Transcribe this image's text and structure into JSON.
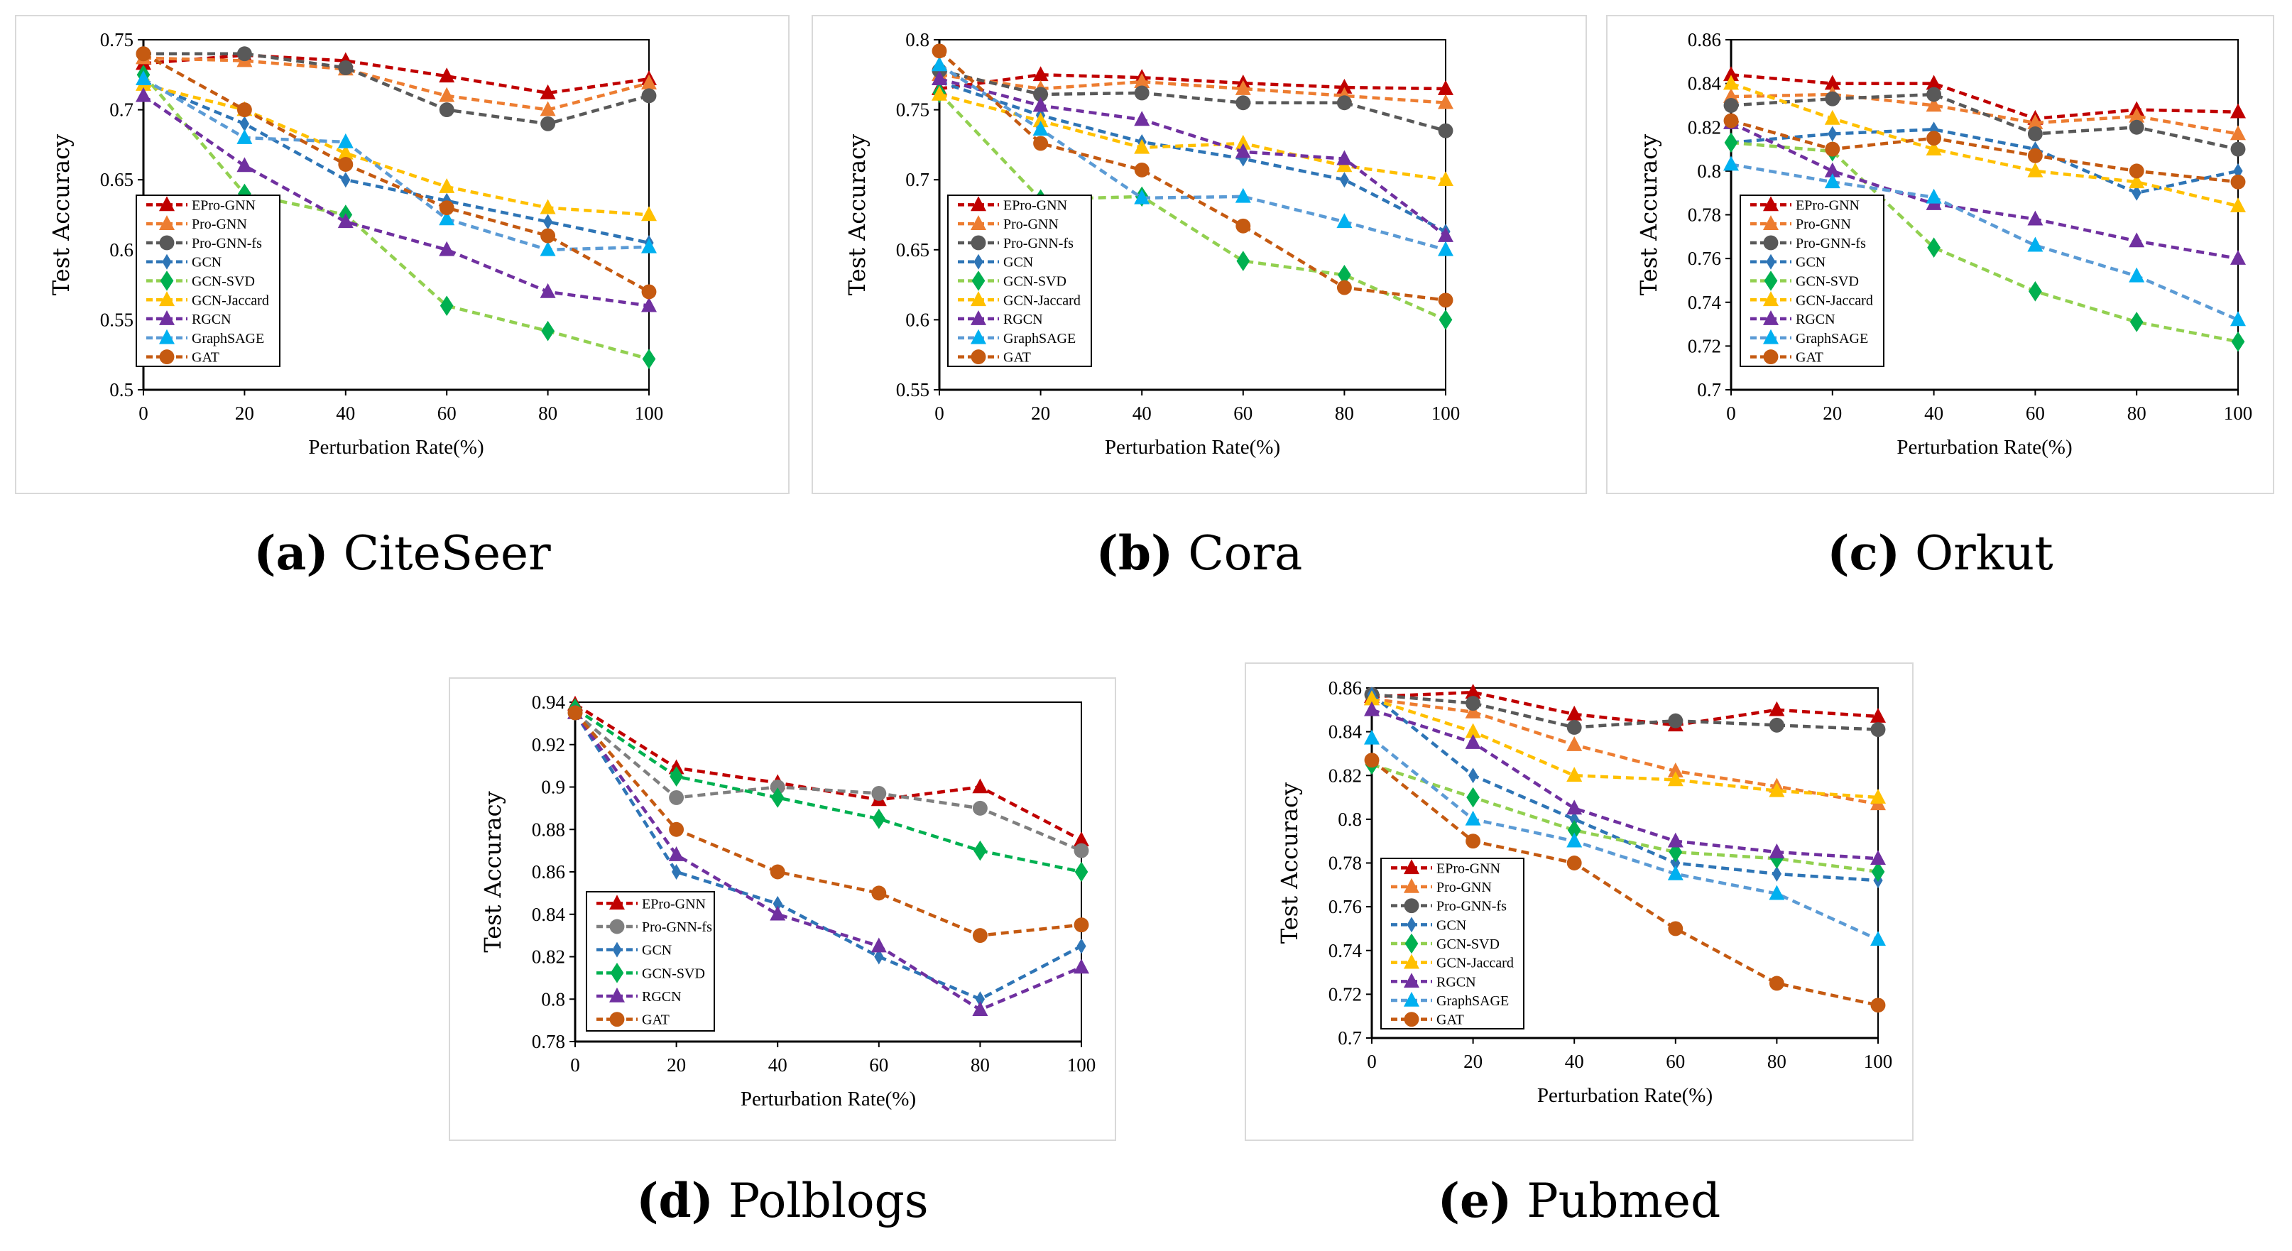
{
  "styles": {
    "EPro-GNN": {
      "line": "#C00000",
      "marker": "#C00000",
      "shape": "triangle"
    },
    "Pro-GNN": {
      "line": "#ED7D31",
      "marker": "#ED7D31",
      "shape": "triangle"
    },
    "Pro-GNN-fs": {
      "line": "#595959",
      "marker": "#595959",
      "shape": "circle"
    },
    "GCN": {
      "line": "#2E75B6",
      "marker": "#2E75B6",
      "shape": "small-diamond"
    },
    "GCN-SVD": {
      "line": "#92D050",
      "marker": "#00B050",
      "shape": "diamond"
    },
    "GCN-Jaccard": {
      "line": "#FFC000",
      "marker": "#FFC000",
      "shape": "triangle"
    },
    "RGCN": {
      "line": "#7030A0",
      "marker": "#7030A0",
      "shape": "triangle"
    },
    "GraphSAGE": {
      "line": "#5B9BD5",
      "marker": "#00B0F0",
      "shape": "triangle"
    },
    "GAT": {
      "line": "#C55A11",
      "marker": "#C55A11",
      "shape": "circle"
    }
  },
  "chart_data": [
    {
      "type": "line",
      "caption_letter": "(a)",
      "caption_name": "CiteSeer",
      "xlabel": "Perturbation Rate(%)",
      "ylabel": "Test  Accuracy",
      "x": [
        0,
        20,
        40,
        60,
        80,
        100
      ],
      "xticks": [
        "0",
        "20",
        "40",
        "60",
        "80",
        "100"
      ],
      "ylim": [
        0.5,
        0.75
      ],
      "yticks": [
        "0.5",
        "0.55",
        "0.6",
        "0.65",
        "0.7",
        "0.75"
      ],
      "grid": false,
      "legend": "bottom-left",
      "series": [
        {
          "name": "EPro-GNN",
          "values": [
            0.733,
            0.739,
            0.735,
            0.724,
            0.712,
            0.722
          ]
        },
        {
          "name": "Pro-GNN",
          "values": [
            0.737,
            0.735,
            0.729,
            0.71,
            0.7,
            0.719
          ]
        },
        {
          "name": "Pro-GNN-fs",
          "values": [
            0.74,
            0.74,
            0.73,
            0.7,
            0.69,
            0.71
          ]
        },
        {
          "name": "GCN",
          "values": [
            0.72,
            0.69,
            0.65,
            0.635,
            0.62,
            0.605
          ]
        },
        {
          "name": "GCN-SVD",
          "values": [
            0.725,
            0.64,
            0.625,
            0.56,
            0.542,
            0.522
          ]
        },
        {
          "name": "GCN-Jaccard",
          "values": [
            0.718,
            0.7,
            0.669,
            0.645,
            0.63,
            0.625
          ]
        },
        {
          "name": "RGCN",
          "values": [
            0.71,
            0.66,
            0.62,
            0.6,
            0.57,
            0.56
          ]
        },
        {
          "name": "GraphSAGE",
          "values": [
            0.722,
            0.68,
            0.677,
            0.622,
            0.6,
            0.602
          ]
        },
        {
          "name": "GAT",
          "values": [
            0.74,
            0.7,
            0.661,
            0.63,
            0.61,
            0.57
          ]
        }
      ]
    },
    {
      "type": "line",
      "caption_letter": "(b)",
      "caption_name": "Cora",
      "xlabel": "Perturbation Rate(%)",
      "ylabel": "Test  Accuracy",
      "x": [
        0,
        20,
        40,
        60,
        80,
        100
      ],
      "xticks": [
        "0",
        "20",
        "40",
        "60",
        "80",
        "100"
      ],
      "ylim": [
        0.55,
        0.8
      ],
      "yticks": [
        "0.55",
        "0.6",
        "0.65",
        "0.7",
        "0.75",
        "0.8"
      ],
      "grid": false,
      "legend": "bottom-left",
      "series": [
        {
          "name": "EPro-GNN",
          "values": [
            0.765,
            0.775,
            0.773,
            0.769,
            0.766,
            0.765
          ]
        },
        {
          "name": "Pro-GNN",
          "values": [
            0.775,
            0.765,
            0.77,
            0.765,
            0.76,
            0.755
          ]
        },
        {
          "name": "Pro-GNN-fs",
          "values": [
            0.778,
            0.761,
            0.762,
            0.755,
            0.755,
            0.735
          ]
        },
        {
          "name": "GCN",
          "values": [
            0.77,
            0.746,
            0.727,
            0.715,
            0.7,
            0.663
          ]
        },
        {
          "name": "GCN-SVD",
          "values": [
            0.762,
            0.686,
            0.688,
            0.642,
            0.632,
            0.6
          ]
        },
        {
          "name": "GCN-Jaccard",
          "values": [
            0.761,
            0.742,
            0.723,
            0.726,
            0.71,
            0.7
          ]
        },
        {
          "name": "RGCN",
          "values": [
            0.772,
            0.753,
            0.743,
            0.72,
            0.715,
            0.66
          ]
        },
        {
          "name": "GraphSAGE",
          "values": [
            0.782,
            0.736,
            0.687,
            0.688,
            0.67,
            0.65
          ]
        },
        {
          "name": "GAT",
          "values": [
            0.792,
            0.726,
            0.707,
            0.667,
            0.623,
            0.614
          ]
        }
      ]
    },
    {
      "type": "line",
      "caption_letter": "(c)",
      "caption_name": "Orkut",
      "xlabel": "Perturbation Rate(%)",
      "ylabel": "Test  Accuracy",
      "x": [
        0,
        20,
        40,
        60,
        80,
        100
      ],
      "xticks": [
        "0",
        "20",
        "40",
        "60",
        "80",
        "100"
      ],
      "ylim": [
        0.7,
        0.86
      ],
      "yticks": [
        "0.7",
        "0.72",
        "0.74",
        "0.76",
        "0.78",
        "0.8",
        "0.82",
        "0.84",
        "0.86"
      ],
      "grid": false,
      "legend": "bottom-left",
      "series": [
        {
          "name": "EPro-GNN",
          "values": [
            0.844,
            0.84,
            0.84,
            0.824,
            0.828,
            0.827
          ]
        },
        {
          "name": "Pro-GNN",
          "values": [
            0.834,
            0.835,
            0.83,
            0.822,
            0.825,
            0.817
          ]
        },
        {
          "name": "Pro-GNN-fs",
          "values": [
            0.83,
            0.833,
            0.835,
            0.817,
            0.82,
            0.81
          ]
        },
        {
          "name": "GCN",
          "values": [
            0.813,
            0.817,
            0.819,
            0.81,
            0.79,
            0.8
          ]
        },
        {
          "name": "GCN-SVD",
          "values": [
            0.813,
            0.809,
            0.765,
            0.745,
            0.731,
            0.722
          ]
        },
        {
          "name": "GCN-Jaccard",
          "values": [
            0.84,
            0.824,
            0.81,
            0.8,
            0.795,
            0.784
          ]
        },
        {
          "name": "RGCN",
          "values": [
            0.822,
            0.8,
            0.785,
            0.778,
            0.768,
            0.76
          ]
        },
        {
          "name": "GraphSAGE",
          "values": [
            0.803,
            0.795,
            0.788,
            0.766,
            0.752,
            0.732
          ]
        },
        {
          "name": "GAT",
          "values": [
            0.823,
            0.81,
            0.815,
            0.807,
            0.8,
            0.795
          ]
        }
      ]
    },
    {
      "type": "line",
      "caption_letter": "(d)",
      "caption_name": "Polblogs",
      "xlabel": "Perturbation Rate(%)",
      "ylabel": "Test  Accuracy",
      "x": [
        0,
        20,
        40,
        60,
        80,
        100
      ],
      "xticks": [
        "0",
        "20",
        "40",
        "60",
        "80",
        "100"
      ],
      "ylim": [
        0.78,
        0.94
      ],
      "yticks": [
        "0.78",
        "0.8",
        "0.82",
        "0.84",
        "0.86",
        "0.88",
        "0.9",
        "0.92",
        "0.94"
      ],
      "grid": false,
      "legend": "bottom-left",
      "series": [
        {
          "name": "EPro-GNN",
          "values": [
            0.939,
            0.909,
            0.902,
            0.894,
            0.9,
            0.875
          ]
        },
        {
          "name": "Pro-GNN-fs",
          "values": [
            0.935,
            0.895,
            0.9,
            0.897,
            0.89,
            0.87
          ],
          "line": "#7F7F7F",
          "marker": "#7F7F7F"
        },
        {
          "name": "GCN",
          "values": [
            0.935,
            0.86,
            0.845,
            0.82,
            0.8,
            0.825
          ]
        },
        {
          "name": "GCN-SVD",
          "values": [
            0.937,
            0.905,
            0.895,
            0.885,
            0.87,
            0.86
          ],
          "line": "#00B050"
        },
        {
          "name": "RGCN",
          "values": [
            0.935,
            0.868,
            0.84,
            0.825,
            0.795,
            0.815
          ]
        },
        {
          "name": "GAT",
          "values": [
            0.935,
            0.88,
            0.86,
            0.85,
            0.83,
            0.835
          ]
        }
      ]
    },
    {
      "type": "line",
      "caption_letter": "(e)",
      "caption_name": "Pubmed",
      "xlabel": "Perturbation Rate(%)",
      "ylabel": "Test  Accuracy",
      "x": [
        0,
        20,
        40,
        60,
        80,
        100
      ],
      "xticks": [
        "0",
        "20",
        "40",
        "60",
        "80",
        "100"
      ],
      "ylim": [
        0.7,
        0.86
      ],
      "yticks": [
        "0.7",
        "0.72",
        "0.74",
        "0.76",
        "0.78",
        "0.8",
        "0.82",
        "0.84",
        "0.86"
      ],
      "grid": false,
      "legend": "bottom-left",
      "series": [
        {
          "name": "EPro-GNN",
          "values": [
            0.856,
            0.858,
            0.848,
            0.843,
            0.85,
            0.847
          ]
        },
        {
          "name": "Pro-GNN",
          "values": [
            0.855,
            0.849,
            0.834,
            0.822,
            0.815,
            0.807
          ]
        },
        {
          "name": "Pro-GNN-fs",
          "values": [
            0.857,
            0.853,
            0.842,
            0.845,
            0.843,
            0.841
          ]
        },
        {
          "name": "GCN",
          "values": [
            0.857,
            0.82,
            0.8,
            0.78,
            0.775,
            0.772
          ]
        },
        {
          "name": "GCN-SVD",
          "values": [
            0.825,
            0.81,
            0.795,
            0.785,
            0.782,
            0.776
          ]
        },
        {
          "name": "GCN-Jaccard",
          "values": [
            0.855,
            0.84,
            0.82,
            0.818,
            0.813,
            0.81
          ]
        },
        {
          "name": "RGCN",
          "values": [
            0.85,
            0.835,
            0.805,
            0.79,
            0.785,
            0.782
          ]
        },
        {
          "name": "GraphSAGE",
          "values": [
            0.837,
            0.8,
            0.79,
            0.775,
            0.766,
            0.745
          ]
        },
        {
          "name": "GAT",
          "values": [
            0.827,
            0.79,
            0.78,
            0.75,
            0.725,
            0.715
          ]
        }
      ]
    }
  ]
}
